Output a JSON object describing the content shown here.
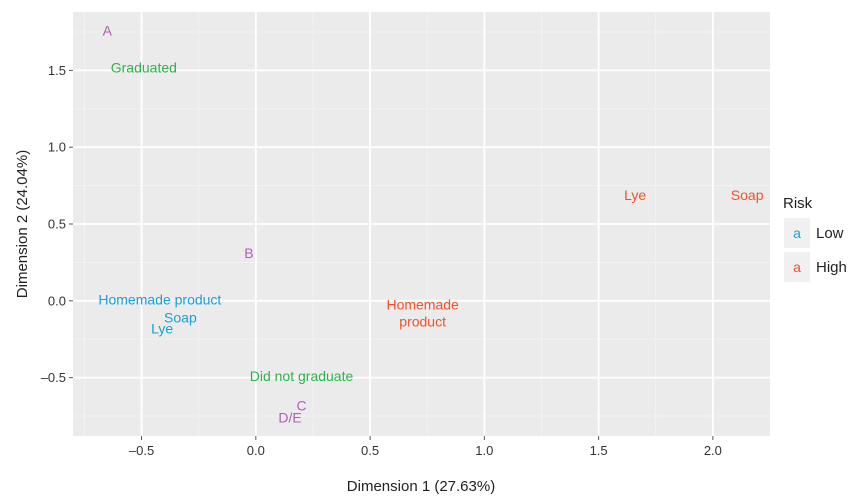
{
  "chart_data": {
    "type": "scatter",
    "title": "",
    "xlabel": "Dimension 1 (27.63%)",
    "ylabel": "Dimension 2 (24.04%)",
    "xlim": [
      -0.8,
      2.25
    ],
    "ylim": [
      -0.88,
      1.88
    ],
    "xticks": [
      -0.5,
      0.0,
      0.5,
      1.0,
      1.5,
      2.0
    ],
    "xtick_labels": [
      "–0.5",
      "0.0",
      "0.5",
      "1.0",
      "1.5",
      "2.0"
    ],
    "yticks": [
      -0.5,
      0.0,
      0.5,
      1.0,
      1.5
    ],
    "ytick_labels": [
      "–0.5",
      "0.0",
      "0.5",
      "1.0",
      "1.5"
    ],
    "grid": true,
    "legend": {
      "title": "Risk",
      "position": "right",
      "glyph": "a",
      "entries": [
        {
          "label": "Low",
          "color": "#1a9fd6"
        },
        {
          "label": "High",
          "color": "#f0522b"
        }
      ]
    },
    "points": [
      {
        "label": "A",
        "x": -0.65,
        "y": 1.76,
        "color": "#b05fb5"
      },
      {
        "label": "Graduated",
        "x": -0.49,
        "y": 1.52,
        "color": "#2bb34a"
      },
      {
        "label": "B",
        "x": -0.03,
        "y": 0.31,
        "color": "#b05fb5"
      },
      {
        "label": "Homemade product",
        "x": -0.42,
        "y": 0.01,
        "color": "#1a9fd6"
      },
      {
        "label": "Soap",
        "x": -0.33,
        "y": -0.11,
        "color": "#1a9fd6"
      },
      {
        "label": "Lye",
        "x": -0.41,
        "y": -0.18,
        "color": "#1a9fd6"
      },
      {
        "label": "Did not graduate",
        "x": 0.2,
        "y": -0.49,
        "color": "#2bb34a"
      },
      {
        "label": "C",
        "x": 0.2,
        "y": -0.68,
        "color": "#b05fb5"
      },
      {
        "label": "D/E",
        "x": 0.15,
        "y": -0.76,
        "color": "#b05fb5"
      },
      {
        "label": "Homemade\nproduct",
        "x": 0.73,
        "y": -0.08,
        "color": "#f0522b"
      },
      {
        "label": "Lye",
        "x": 1.66,
        "y": 0.69,
        "color": "#f0522b"
      },
      {
        "label": "Soap",
        "x": 2.15,
        "y": 0.69,
        "color": "#f0522b"
      }
    ]
  },
  "colors": {
    "panel_background": "#ebebeb",
    "grid_major": "#ffffff",
    "grid_minor": "#f4f4f4",
    "legend_key_background": "#f0f0f0"
  }
}
